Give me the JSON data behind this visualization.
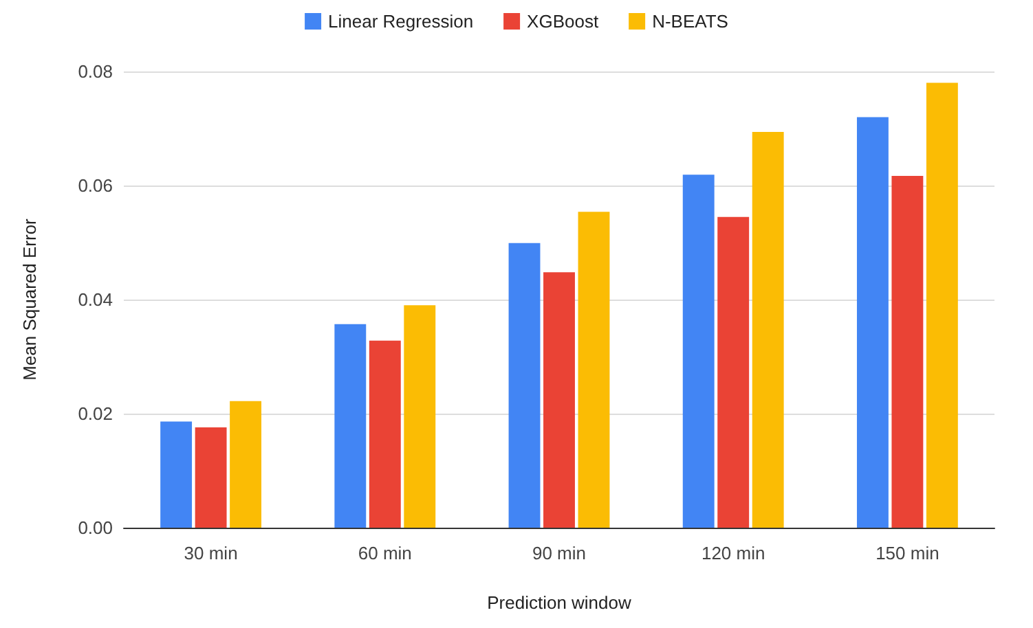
{
  "chart_data": {
    "type": "bar",
    "xlabel": "Prediction window",
    "ylabel": "Mean Squared Error",
    "categories": [
      "30 min",
      "60 min",
      "90 min",
      "120 min",
      "150 min"
    ],
    "series": [
      {
        "name": "Linear Regression",
        "color": "#4285f4",
        "values": [
          0.0186,
          0.0357,
          0.0499,
          0.0619,
          0.072
        ]
      },
      {
        "name": "XGBoost",
        "color": "#ea4335",
        "values": [
          0.0176,
          0.0328,
          0.0448,
          0.0545,
          0.0617
        ]
      },
      {
        "name": "N-BEATS",
        "color": "#fbbc04",
        "values": [
          0.0222,
          0.039,
          0.0554,
          0.0694,
          0.078
        ]
      }
    ],
    "ylim": [
      0,
      0.08
    ],
    "yticks": [
      {
        "value": 0,
        "label": "0.00"
      },
      {
        "value": 0.02,
        "label": "0.02"
      },
      {
        "value": 0.04,
        "label": "0.04"
      },
      {
        "value": 0.06,
        "label": "0.06"
      },
      {
        "value": 0.08,
        "label": "0.08"
      }
    ],
    "grid": "y",
    "legend": "top"
  }
}
